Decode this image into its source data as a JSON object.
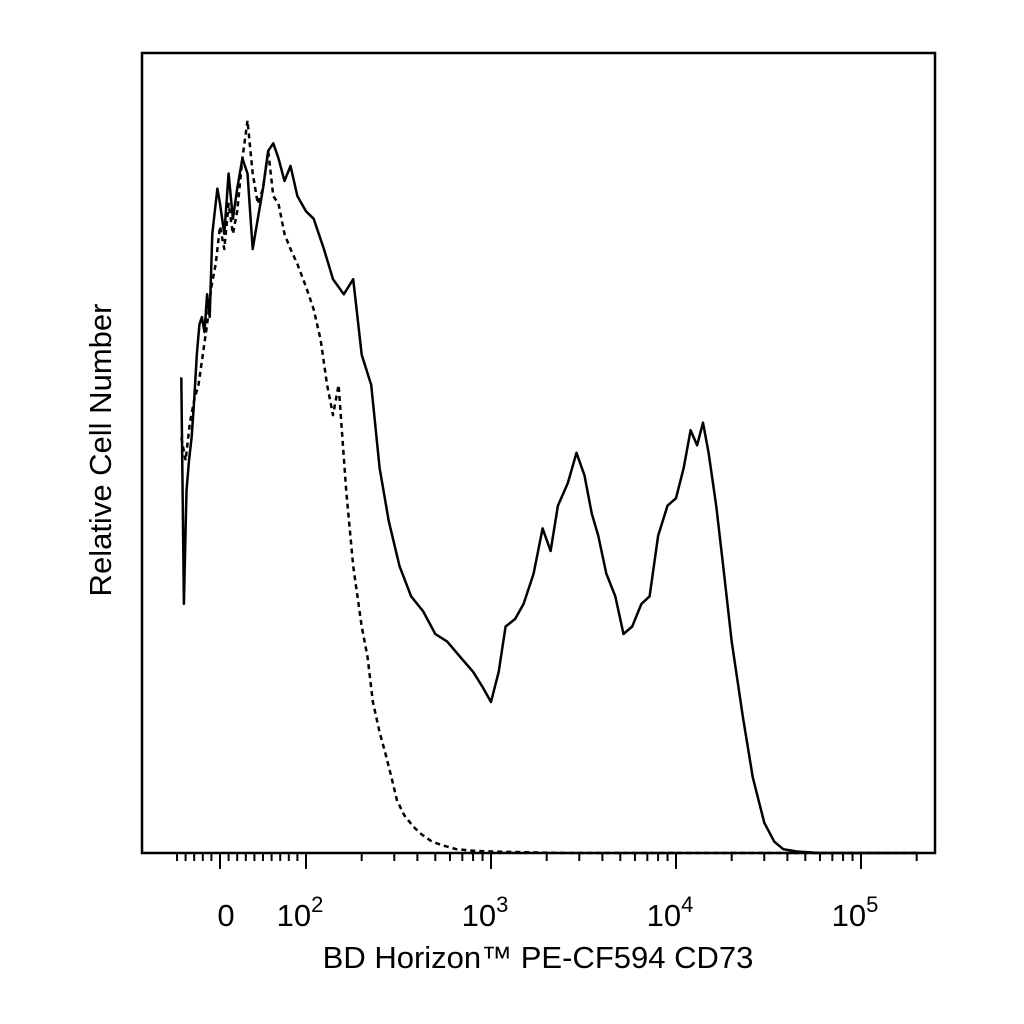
{
  "chart_data": {
    "type": "line",
    "title": "",
    "xlabel": "BD Horizon™ PE-CF594 CD73",
    "ylabel": "Relative Cell Number",
    "x_scale": "biexponential",
    "xlim": [
      -60,
      260000
    ],
    "ylim": [
      0,
      100
    ],
    "grid": false,
    "legend": "none",
    "x_ticks": [
      {
        "value": 0,
        "base": "0",
        "exp": ""
      },
      {
        "value": 100,
        "base": "10",
        "exp": "2"
      },
      {
        "value": 1000,
        "base": "10",
        "exp": "3"
      },
      {
        "value": 10000,
        "base": "10",
        "exp": "4"
      },
      {
        "value": 100000,
        "base": "10",
        "exp": "5"
      }
    ],
    "series": [
      {
        "style": "solid",
        "x": [
          -45,
          -42,
          -39,
          -36,
          -33,
          -30,
          -27,
          -24,
          -21,
          -18,
          -15,
          -12,
          -9,
          -6,
          -3,
          0,
          5,
          10,
          15,
          20,
          26,
          32,
          38,
          44,
          50,
          56,
          62,
          68,
          75,
          82,
          90,
          100,
          110,
          125,
          140,
          160,
          180,
          200,
          225,
          250,
          280,
          320,
          370,
          430,
          500,
          580,
          680,
          800,
          900,
          1000,
          1100,
          1200,
          1350,
          1500,
          1700,
          1900,
          2100,
          2300,
          2600,
          2900,
          3200,
          3500,
          3800,
          4200,
          4700,
          5200,
          5800,
          6500,
          7200,
          8000,
          9000,
          10000,
          11000,
          12000,
          13000,
          14000,
          15000,
          16500,
          18000,
          20000,
          23000,
          26000,
          30000,
          34000,
          38000,
          45000,
          60000,
          100000,
          200000
        ],
        "values": [
          63,
          33,
          48,
          52,
          55,
          60,
          66,
          70,
          71,
          69,
          74,
          71,
          82,
          85,
          88,
          86,
          82,
          90,
          84,
          88,
          92,
          90,
          80,
          84,
          88,
          93,
          94,
          92,
          89,
          91,
          87,
          85,
          84,
          80,
          76,
          74,
          76,
          66,
          62,
          51,
          44,
          38,
          34,
          32,
          29,
          28,
          26,
          24,
          22,
          20,
          24,
          30,
          31,
          33,
          37,
          43,
          40,
          46,
          49,
          53,
          50,
          45,
          42,
          37,
          34,
          29,
          30,
          33,
          34,
          42,
          46,
          47,
          51,
          56,
          54,
          57,
          53,
          46,
          38,
          28,
          18,
          10,
          4,
          1.5,
          0.5,
          0.2,
          0,
          0,
          0
        ]
      },
      {
        "style": "dashed",
        "x": [
          -45,
          -40,
          -35,
          -30,
          -25,
          -20,
          -15,
          -10,
          -5,
          0,
          5,
          10,
          15,
          20,
          26,
          32,
          38,
          44,
          50,
          56,
          62,
          68,
          75,
          82,
          90,
          100,
          110,
          120,
          130,
          140,
          150,
          165,
          180,
          200,
          215,
          230,
          250,
          270,
          290,
          310,
          340,
          380,
          420,
          480,
          550,
          650,
          800,
          1000,
          1500,
          2500,
          5000,
          10000,
          20000,
          50000,
          100000,
          200000
        ],
        "values": [
          55,
          52,
          57,
          60,
          62,
          66,
          70,
          75,
          78,
          83,
          80,
          86,
          82,
          85,
          92,
          97,
          90,
          86,
          88,
          93,
          87,
          86,
          82,
          80,
          78,
          75,
          72,
          68,
          62,
          58,
          62,
          48,
          38,
          30,
          26,
          20,
          16,
          13,
          10,
          7,
          5,
          3.5,
          2.5,
          1.5,
          1,
          0.5,
          0.3,
          0.2,
          0.1,
          0,
          0,
          0,
          0,
          0,
          0,
          0
        ]
      }
    ]
  }
}
